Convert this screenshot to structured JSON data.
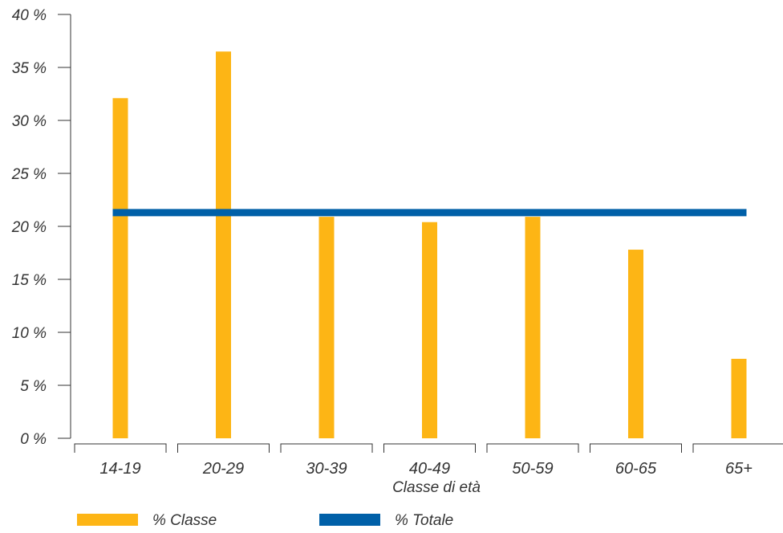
{
  "chart_data": {
    "type": "bar",
    "xlabel": "Classe di età",
    "ylabel": "",
    "ylim": [
      0,
      40
    ],
    "yticks": [
      0,
      5,
      10,
      15,
      20,
      25,
      30,
      35,
      40
    ],
    "ytick_labels": [
      "0 %",
      "5 %",
      "10 %",
      "15 %",
      "20 %",
      "25 %",
      "30 %",
      "35 %",
      "40 %"
    ],
    "categories": [
      "14-19",
      "20-29",
      "30-39",
      "40-49",
      "50-59",
      "60-65",
      "65+"
    ],
    "series": [
      {
        "name": "% Classe",
        "type": "bar",
        "color": "#FDB515",
        "values": [
          32.1,
          36.5,
          20.9,
          20.4,
          20.9,
          17.8,
          7.5
        ]
      },
      {
        "name": "% Totale",
        "type": "line",
        "color": "#0060A8",
        "values": [
          21.3,
          21.3,
          21.3,
          21.3,
          21.3,
          21.3,
          21.3
        ]
      }
    ],
    "grid": false,
    "legend_position": "bottom-left"
  }
}
